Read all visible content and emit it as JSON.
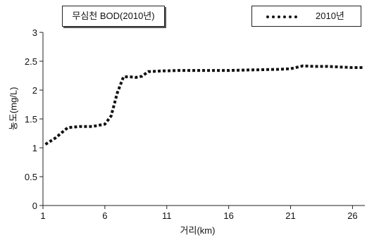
{
  "chart_data": {
    "type": "line",
    "title": "무심천 BOD(2010년)",
    "xlabel": "거리(km)",
    "ylabel": "농도(mg/L)",
    "xlim": [
      1,
      27
    ],
    "ylim": [
      0,
      3
    ],
    "xticks": [
      1,
      6,
      11,
      16,
      21,
      26
    ],
    "yticks": [
      0,
      0.5,
      1,
      1.5,
      2,
      2.5,
      3
    ],
    "ytick_labels": [
      "0",
      "0.5",
      "1",
      "1.5",
      "2",
      "2.5",
      "3"
    ],
    "grid": false,
    "legend_position": "top-right",
    "series": [
      {
        "name": "2010년",
        "color": "#111111",
        "style": "dotted",
        "x": [
          1.2,
          2.0,
          3.0,
          4.0,
          5.0,
          6.0,
          6.5,
          7.0,
          7.5,
          8.0,
          8.5,
          9.0,
          9.5,
          10.5,
          12,
          14,
          16,
          18,
          20,
          21,
          22,
          23,
          24,
          25,
          26,
          26.8
        ],
        "y": [
          1.06,
          1.17,
          1.35,
          1.37,
          1.37,
          1.41,
          1.55,
          1.95,
          2.23,
          2.23,
          2.22,
          2.24,
          2.32,
          2.33,
          2.34,
          2.34,
          2.34,
          2.35,
          2.36,
          2.37,
          2.42,
          2.41,
          2.41,
          2.4,
          2.39,
          2.39
        ]
      }
    ]
  }
}
